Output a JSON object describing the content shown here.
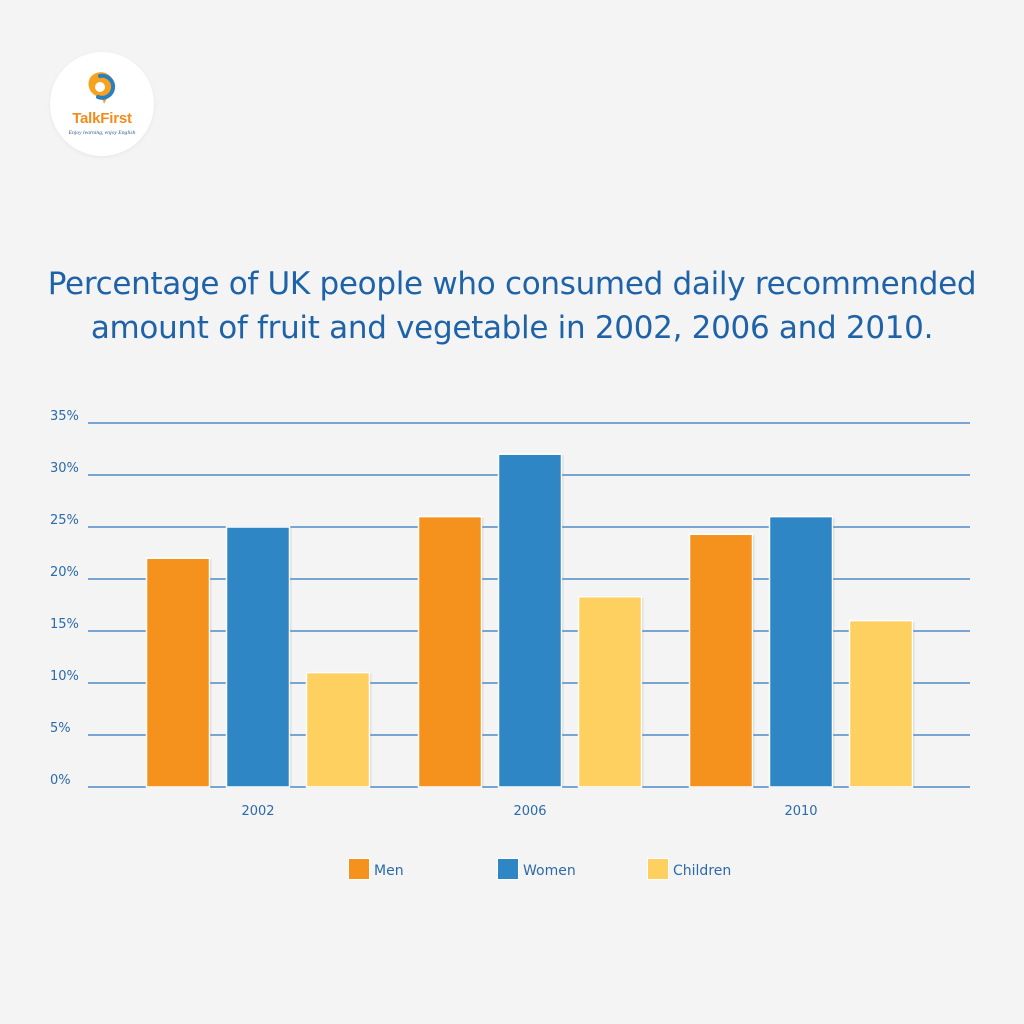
{
  "brand": {
    "name": "TalkFirst",
    "tagline": "Enjoy learning, enjoy English",
    "colors": {
      "orange": "#f28c1c",
      "blue": "#2a7fc1"
    }
  },
  "title_lines": [
    "Percentage of UK people who consumed daily recommended",
    "amount of fruit and vegetable in 2002, 2006 and 2010."
  ],
  "chart_data": {
    "type": "bar",
    "title": "Percentage of UK people who consumed daily recommended amount of fruit and vegetable in 2002, 2006 and 2010.",
    "categories": [
      "2002",
      "2006",
      "2010"
    ],
    "series": [
      {
        "name": "Men",
        "values": [
          22,
          26,
          24.3
        ],
        "color": "#f5921e"
      },
      {
        "name": "Women",
        "values": [
          25,
          32,
          26
        ],
        "color": "#2e86c4"
      },
      {
        "name": "Children",
        "values": [
          11,
          18.3,
          16
        ],
        "color": "#fdd060"
      }
    ],
    "ylim": [
      0,
      35
    ],
    "yticks": [
      0,
      5,
      10,
      15,
      20,
      25,
      30,
      35
    ],
    "ytick_labels": [
      "0%",
      "5%",
      "10%",
      "15%",
      "20%",
      "25%",
      "30%",
      "35%"
    ],
    "xlabel": "",
    "ylabel": "",
    "grid": true,
    "legend_position": "bottom"
  }
}
